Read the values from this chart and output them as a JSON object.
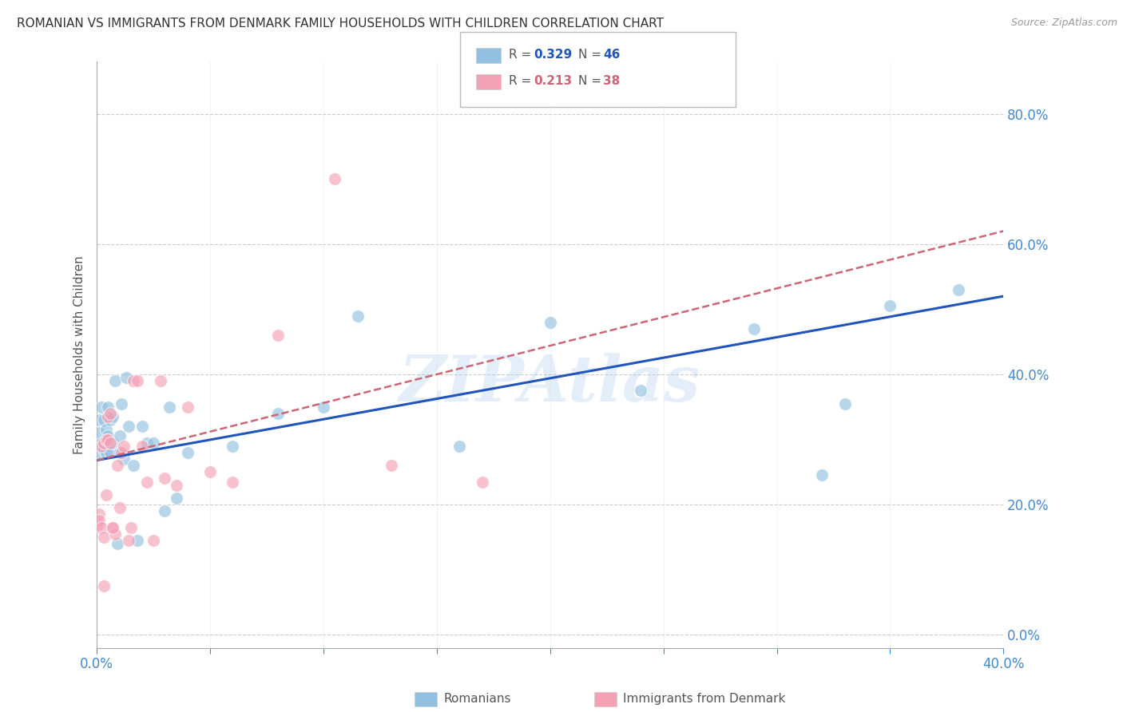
{
  "title": "ROMANIAN VS IMMIGRANTS FROM DENMARK FAMILY HOUSEHOLDS WITH CHILDREN CORRELATION CHART",
  "source": "Source: ZipAtlas.com",
  "ylabel": "Family Households with Children",
  "watermark": "ZIPAtlas",
  "R_blue": 0.329,
  "N_blue": 46,
  "R_pink": 0.213,
  "N_pink": 38,
  "blue_color": "#92c0e0",
  "pink_color": "#f4a0b5",
  "blue_line_color": "#2255bb",
  "pink_line_color": "#cc6677",
  "background_color": "#ffffff",
  "grid_color": "#cccccc",
  "tick_color": "#4488cc",
  "xlim": [
    0.0,
    0.4
  ],
  "ylim": [
    -0.02,
    0.88
  ],
  "xticks": [
    0.0,
    0.05,
    0.1,
    0.15,
    0.2,
    0.25,
    0.3,
    0.35,
    0.4
  ],
  "yticks": [
    0.0,
    0.2,
    0.4,
    0.6,
    0.8
  ],
  "blue_x": [
    0.0005,
    0.001,
    0.001,
    0.0015,
    0.002,
    0.002,
    0.003,
    0.003,
    0.004,
    0.004,
    0.005,
    0.005,
    0.005,
    0.006,
    0.006,
    0.007,
    0.007,
    0.008,
    0.009,
    0.01,
    0.01,
    0.011,
    0.012,
    0.013,
    0.014,
    0.016,
    0.018,
    0.02,
    0.022,
    0.025,
    0.03,
    0.032,
    0.035,
    0.04,
    0.06,
    0.08,
    0.1,
    0.115,
    0.16,
    0.2,
    0.24,
    0.29,
    0.32,
    0.33,
    0.35,
    0.38
  ],
  "blue_y": [
    0.295,
    0.31,
    0.33,
    0.28,
    0.295,
    0.35,
    0.285,
    0.33,
    0.28,
    0.315,
    0.29,
    0.305,
    0.35,
    0.28,
    0.33,
    0.295,
    0.335,
    0.39,
    0.14,
    0.28,
    0.305,
    0.355,
    0.27,
    0.395,
    0.32,
    0.26,
    0.145,
    0.32,
    0.295,
    0.295,
    0.19,
    0.35,
    0.21,
    0.28,
    0.29,
    0.34,
    0.35,
    0.49,
    0.29,
    0.48,
    0.375,
    0.47,
    0.245,
    0.355,
    0.505,
    0.53
  ],
  "pink_x": [
    0.0005,
    0.001,
    0.001,
    0.002,
    0.002,
    0.003,
    0.003,
    0.004,
    0.004,
    0.005,
    0.005,
    0.006,
    0.006,
    0.007,
    0.008,
    0.009,
    0.01,
    0.011,
    0.012,
    0.014,
    0.016,
    0.018,
    0.02,
    0.022,
    0.025,
    0.028,
    0.03,
    0.035,
    0.04,
    0.05,
    0.06,
    0.08,
    0.105,
    0.13,
    0.17,
    0.015,
    0.007,
    0.003
  ],
  "pink_y": [
    0.17,
    0.185,
    0.175,
    0.29,
    0.165,
    0.295,
    0.15,
    0.3,
    0.215,
    0.3,
    0.335,
    0.295,
    0.34,
    0.165,
    0.155,
    0.26,
    0.195,
    0.28,
    0.29,
    0.145,
    0.39,
    0.39,
    0.29,
    0.235,
    0.145,
    0.39,
    0.24,
    0.23,
    0.35,
    0.25,
    0.235,
    0.46,
    0.7,
    0.26,
    0.235,
    0.165,
    0.165,
    0.075
  ],
  "blue_trend": [
    0.268,
    0.52
  ],
  "pink_trend": [
    0.268,
    0.62
  ]
}
